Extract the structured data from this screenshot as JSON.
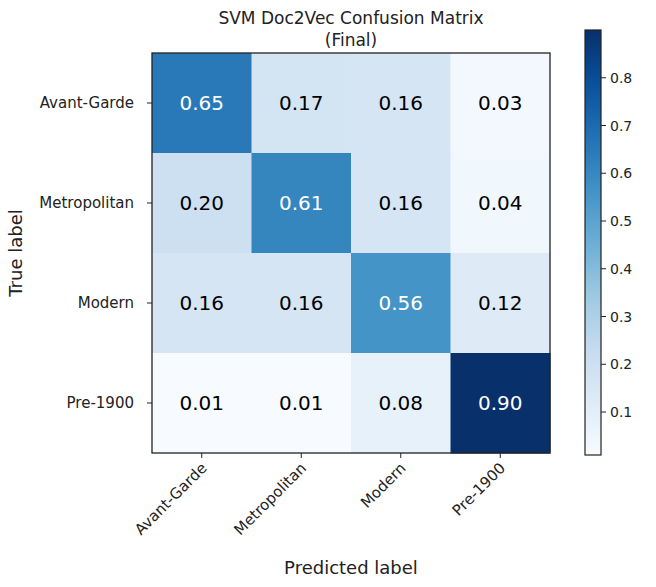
{
  "chart_data": {
    "type": "heatmap",
    "title": "SVM Doc2Vec Confusion Matrix",
    "subtitle": "(Final)",
    "x_label": "Predicted label",
    "y_label": "True label",
    "x_categories": [
      "Avant-Garde",
      "Metropolitan",
      "Modern",
      "Pre-1900"
    ],
    "y_categories": [
      "Avant-Garde",
      "Metropolitan",
      "Modern",
      "Pre-1900"
    ],
    "cells": [
      [
        0.65,
        0.17,
        0.16,
        0.03
      ],
      [
        0.2,
        0.61,
        0.16,
        0.04
      ],
      [
        0.16,
        0.16,
        0.56,
        0.12
      ],
      [
        0.01,
        0.01,
        0.08,
        0.9
      ]
    ],
    "value_labels": [
      [
        "0.65",
        "0.17",
        "0.16",
        "0.03"
      ],
      [
        "0.20",
        "0.61",
        "0.16",
        "0.04"
      ],
      [
        "0.16",
        "0.16",
        "0.56",
        "0.12"
      ],
      [
        "0.01",
        "0.01",
        "0.08",
        "0.90"
      ]
    ],
    "data_labels": true,
    "colorbar_range": [
      0.01,
      0.9
    ],
    "colorbar_ticks": [
      0.1,
      0.2,
      0.3,
      0.4,
      0.5,
      0.6,
      0.7,
      0.8
    ]
  }
}
